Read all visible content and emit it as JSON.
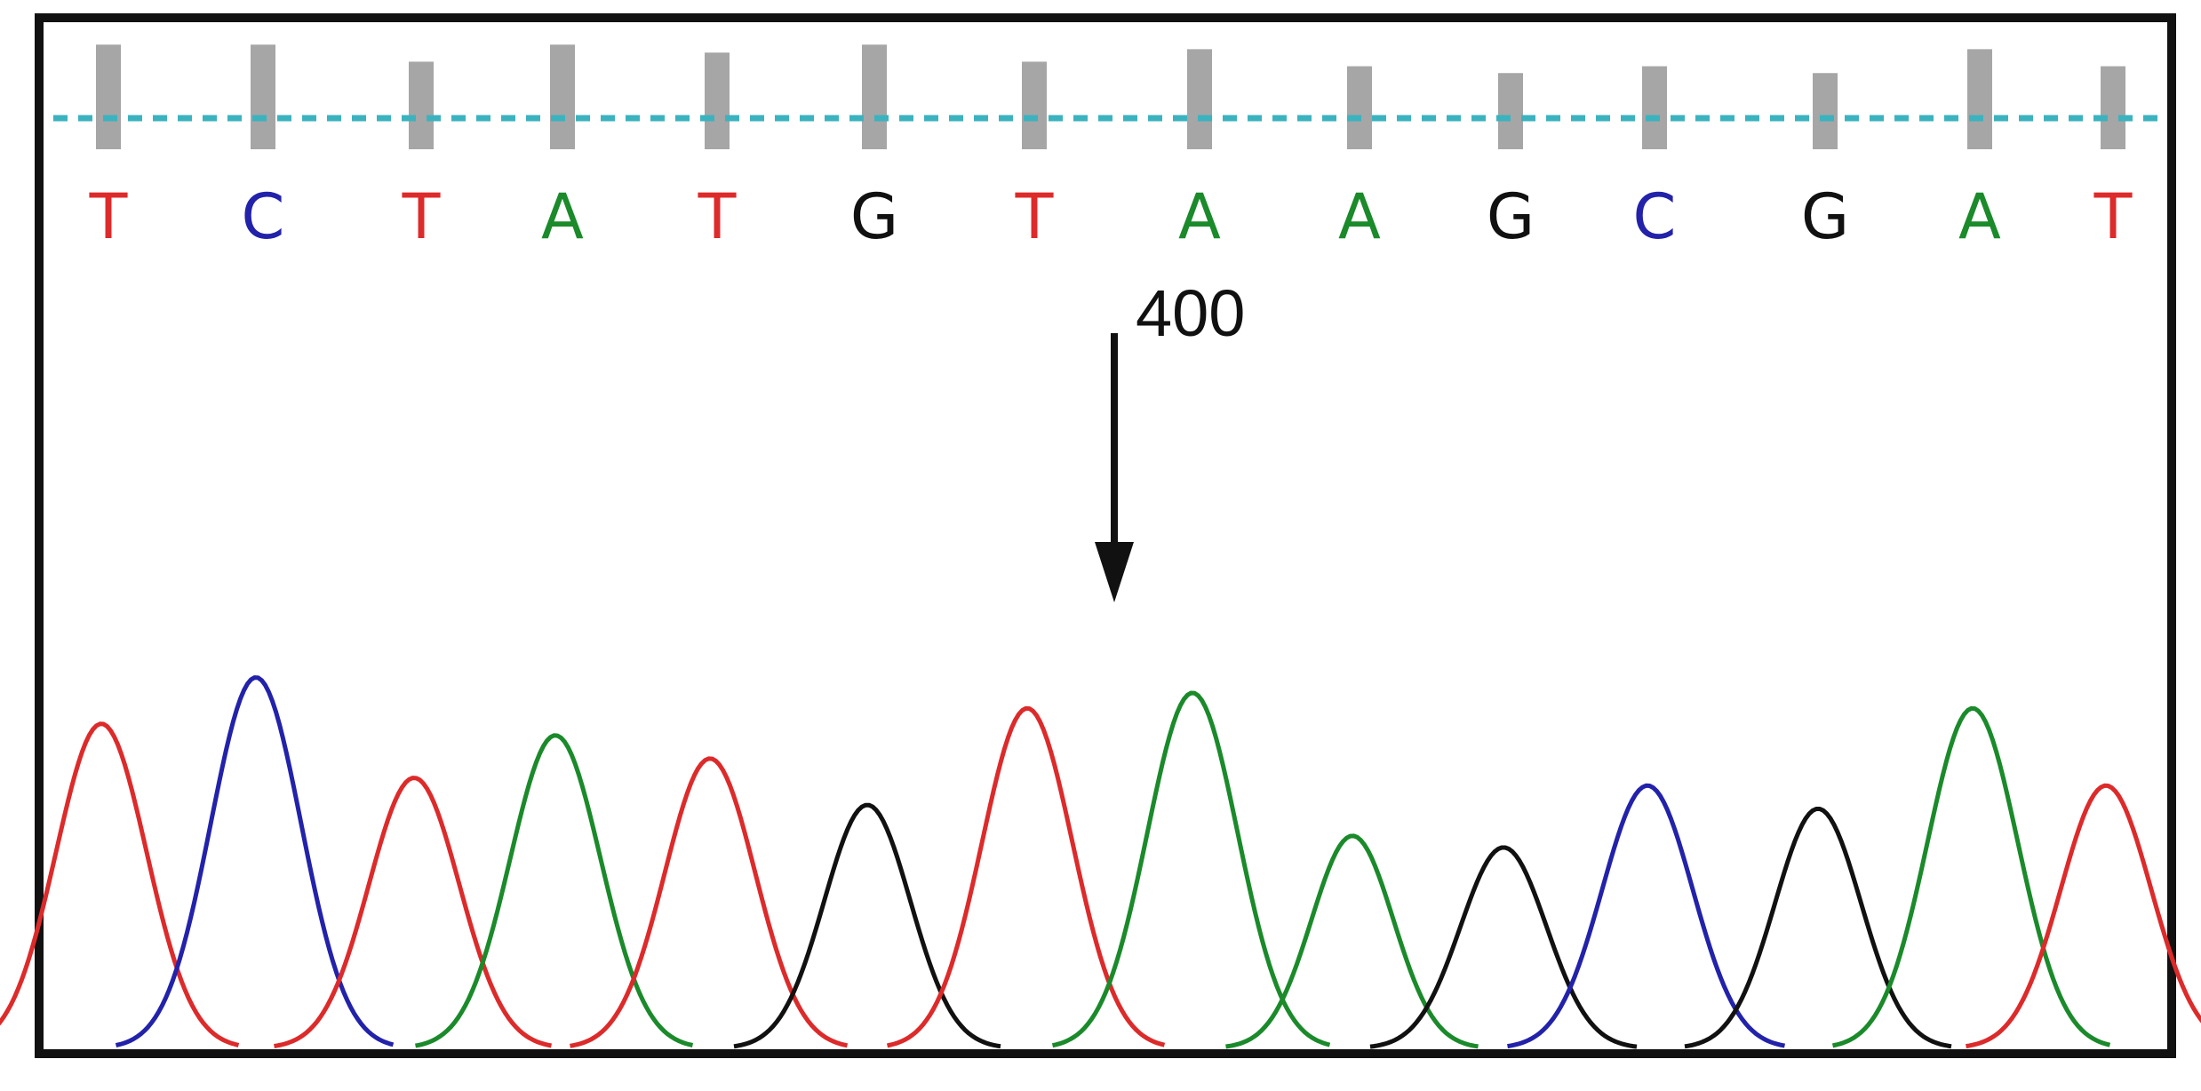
{
  "chart_data": {
    "type": "line",
    "title": "",
    "xlabel": "",
    "ylabel": "",
    "grid": false,
    "legend": "none",
    "colors": {
      "A": "#1a8a2a",
      "C": "#2222aa",
      "G": "#111111",
      "T": "#dd2a2a",
      "quality_bar": "#a6a6a6",
      "threshold_line": "#3bb3bf"
    },
    "bases": [
      {
        "label": "T",
        "quality": 0.92,
        "base": "T"
      },
      {
        "label": "C",
        "quality": 0.92,
        "base": "C"
      },
      {
        "label": "T",
        "quality": 0.77,
        "base": "T"
      },
      {
        "label": "A",
        "quality": 0.92,
        "base": "A"
      },
      {
        "label": "T",
        "quality": 0.85,
        "base": "T"
      },
      {
        "label": "G",
        "quality": 0.92,
        "base": "G"
      },
      {
        "label": "T",
        "quality": 0.77,
        "base": "T"
      },
      {
        "label": "A",
        "quality": 0.88,
        "base": "A"
      },
      {
        "label": "A",
        "quality": 0.73,
        "base": "A"
      },
      {
        "label": "G",
        "quality": 0.67,
        "base": "G"
      },
      {
        "label": "C",
        "quality": 0.73,
        "base": "C"
      },
      {
        "label": "G",
        "quality": 0.67,
        "base": "G"
      },
      {
        "label": "A",
        "quality": 0.88,
        "base": "A"
      },
      {
        "label": "T",
        "quality": 0.73,
        "base": "T"
      }
    ],
    "position_marker": {
      "label": "400",
      "after_base_index": 7
    },
    "peaks": [
      {
        "base": "T",
        "x": 0,
        "height": 0.84,
        "width": 0.42
      },
      {
        "base": "C",
        "x": 1,
        "height": 0.96,
        "width": 0.42
      },
      {
        "base": "T",
        "x": 2,
        "height": 0.7,
        "width": 0.42
      },
      {
        "base": "A",
        "x": 3,
        "height": 0.81,
        "width": 0.42
      },
      {
        "base": "T",
        "x": 4,
        "height": 0.75,
        "width": 0.42
      },
      {
        "base": "G",
        "x": 5,
        "height": 0.63,
        "width": 0.4
      },
      {
        "base": "T",
        "x": 6,
        "height": 0.88,
        "width": 0.42
      },
      {
        "base": "A",
        "x": 7,
        "height": 0.92,
        "width": 0.42
      },
      {
        "base": "A",
        "x": 8,
        "height": 0.55,
        "width": 0.38
      },
      {
        "base": "G",
        "x": 9,
        "height": 0.52,
        "width": 0.4
      },
      {
        "base": "C",
        "x": 10,
        "height": 0.68,
        "width": 0.42
      },
      {
        "base": "G",
        "x": 11,
        "height": 0.62,
        "width": 0.4
      },
      {
        "base": "A",
        "x": 12,
        "height": 0.88,
        "width": 0.42
      },
      {
        "base": "T",
        "x": 13,
        "height": 0.68,
        "width": 0.42
      }
    ]
  }
}
